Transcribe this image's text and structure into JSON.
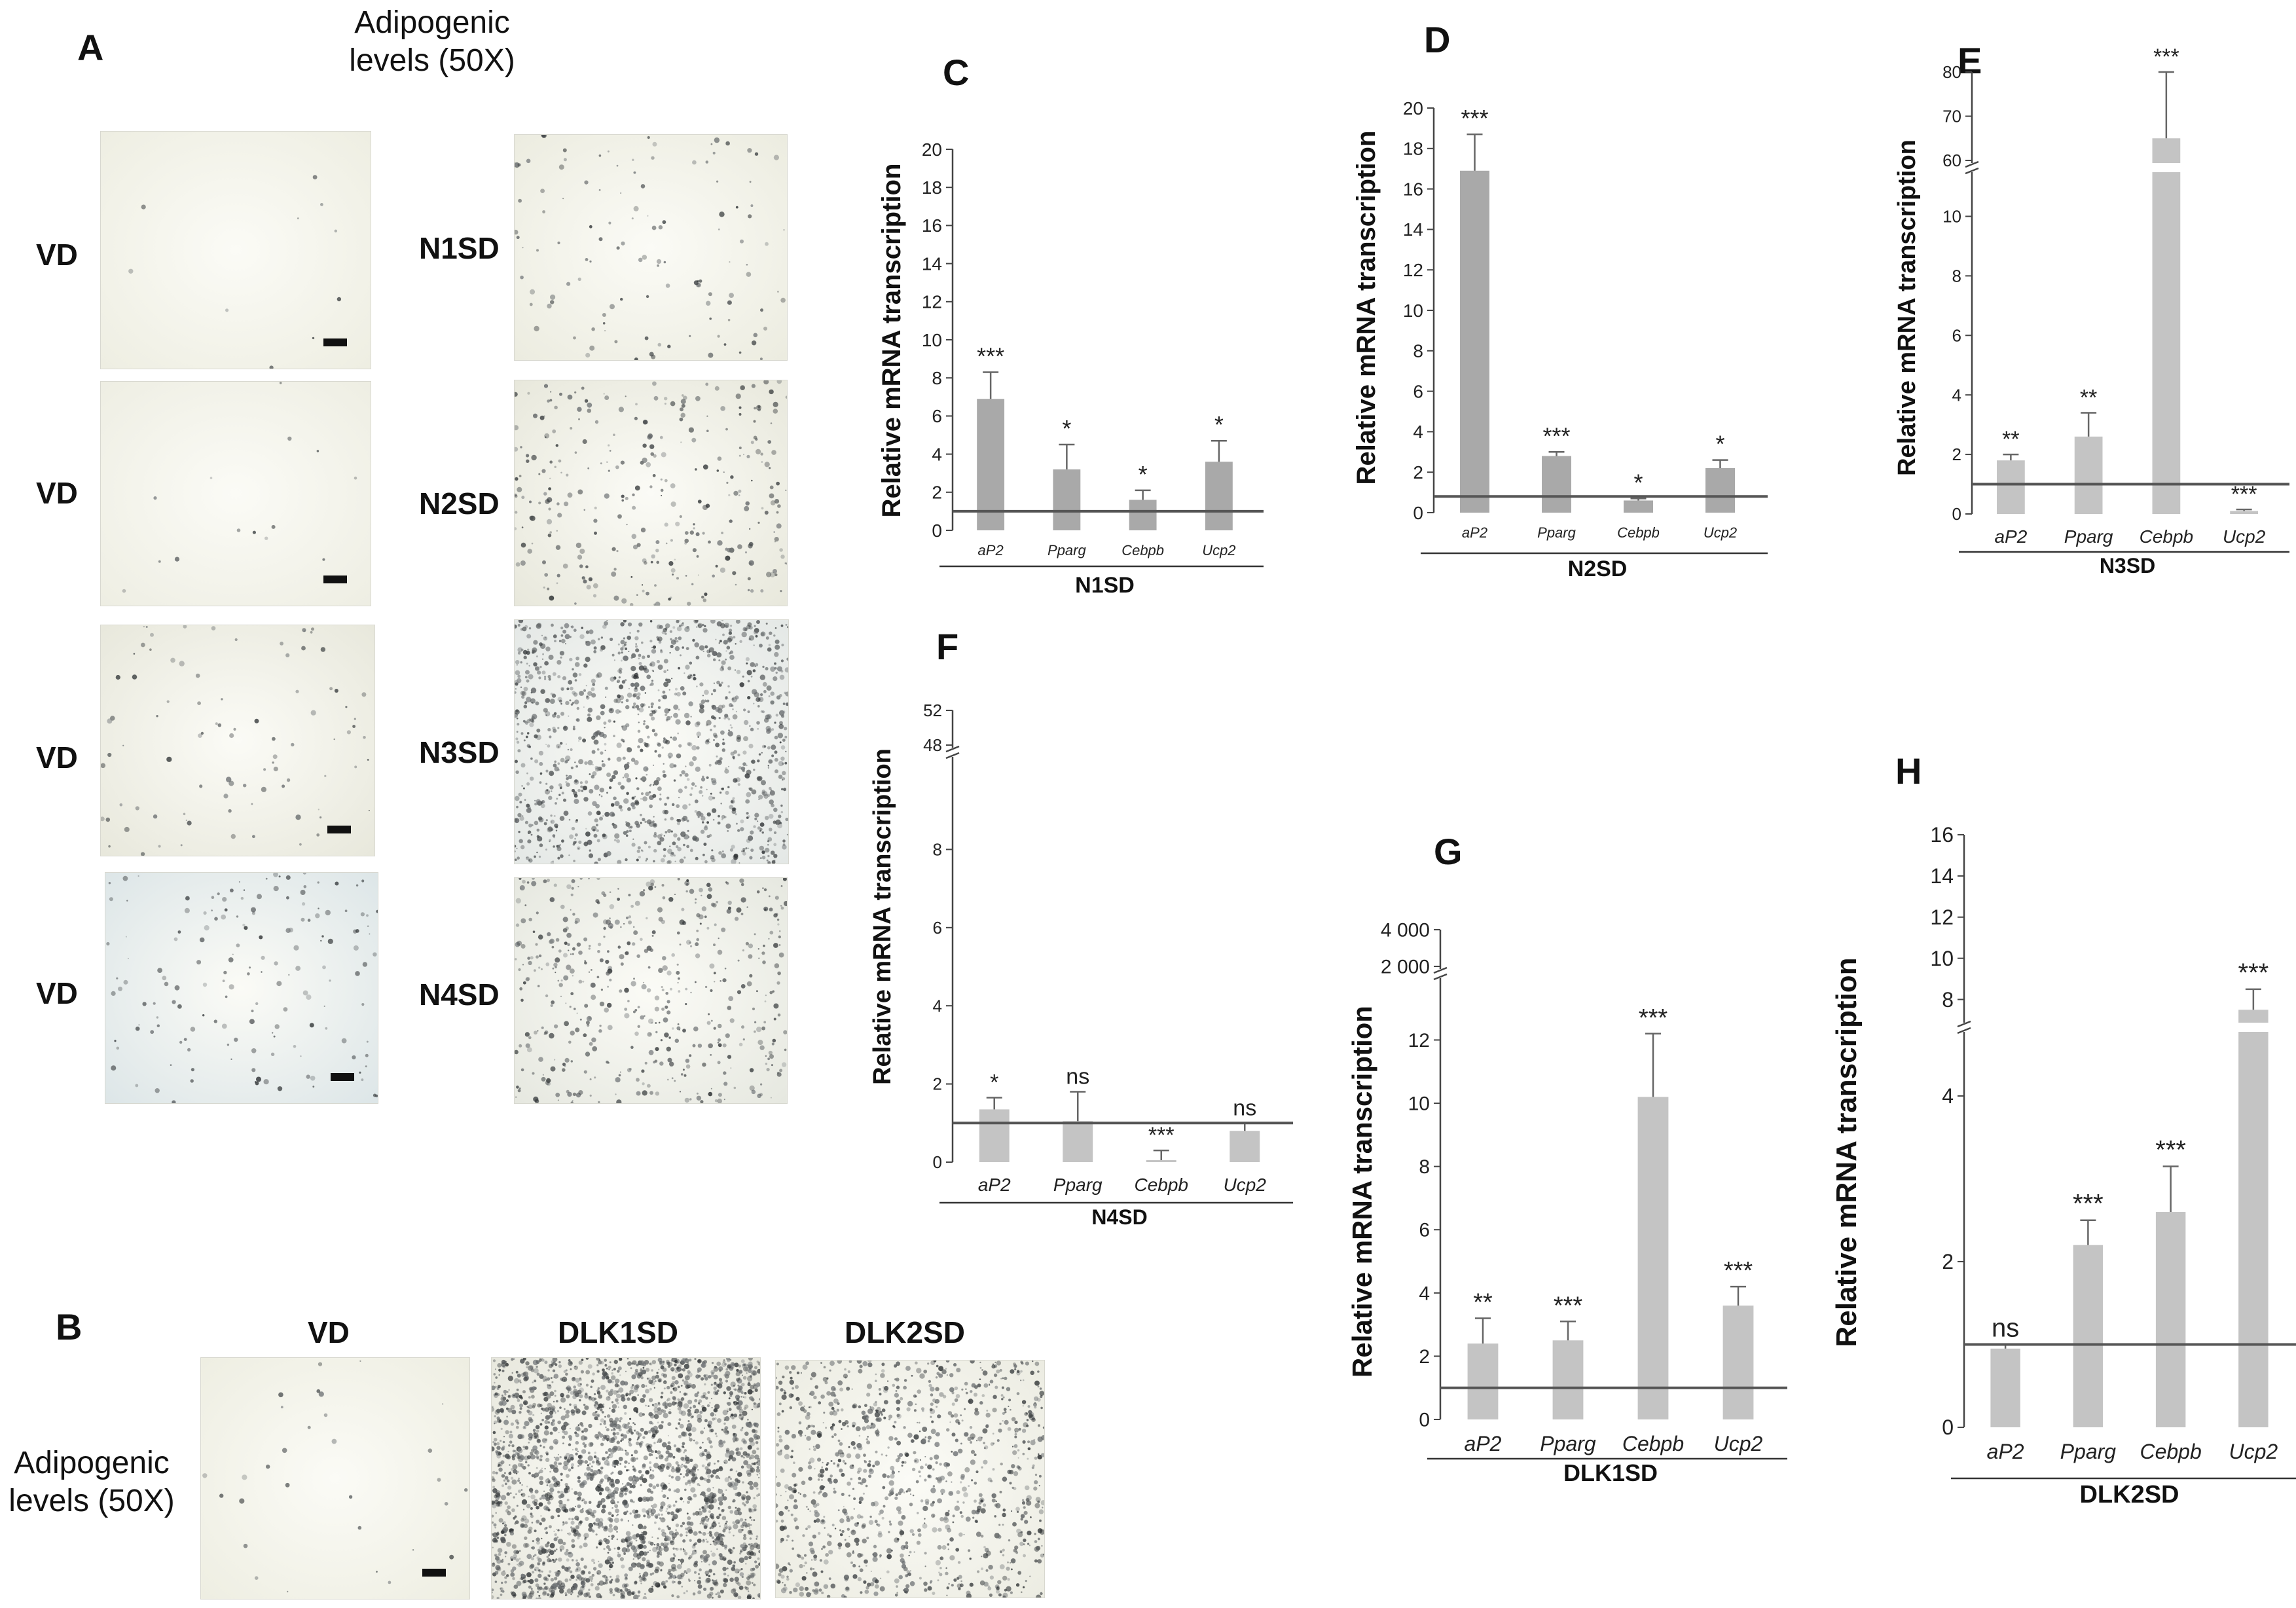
{
  "panel_a": {
    "letter": "A",
    "header": [
      "Adipogenic",
      "levels (50X)"
    ],
    "rows": [
      {
        "control": "VD",
        "treated": "N1SD"
      },
      {
        "control": "VD",
        "treated": "N2SD"
      },
      {
        "control": "VD",
        "treated": "N3SD"
      },
      {
        "control": "VD",
        "treated": "N4SD"
      }
    ]
  },
  "panel_b": {
    "letter": "B",
    "row_label": [
      "Adipogenic",
      "levels (50X)"
    ],
    "columns": [
      "VD",
      "DLK1SD",
      "DLK2SD"
    ]
  },
  "colors": {
    "bar": "#c4c4c4",
    "bar_dark": "#a9a9a9",
    "axis": "#444444",
    "reference_line": "#555555"
  },
  "chart_data": [
    {
      "id": "C",
      "letter": "C",
      "type": "bar",
      "group": "N1SD",
      "ylabel": "Relative mRNA transcription",
      "categories": [
        "aP2",
        "Pparg",
        "Cebpb",
        "Ucp2"
      ],
      "values": [
        6.9,
        3.2,
        1.6,
        3.6
      ],
      "errors": [
        1.4,
        1.3,
        0.5,
        1.1
      ],
      "significance": [
        "***",
        "*",
        "*",
        "*"
      ],
      "ylim": [
        0,
        20
      ],
      "ticks": [
        0,
        2,
        4,
        6,
        8,
        10,
        12,
        14,
        16,
        18,
        20
      ],
      "reference": 1
    },
    {
      "id": "D",
      "letter": "D",
      "type": "bar",
      "group": "N2SD",
      "ylabel": "Relative mRNA transcription",
      "categories": [
        "aP2",
        "Pparg",
        "Cebpb",
        "Ucp2"
      ],
      "values": [
        16.9,
        2.8,
        0.6,
        2.2
      ],
      "errors": [
        1.8,
        0.2,
        0.1,
        0.4
      ],
      "significance": [
        "***",
        "***",
        "*",
        "*"
      ],
      "ylim": [
        0,
        20
      ],
      "ticks": [
        0,
        2,
        4,
        6,
        8,
        10,
        12,
        14,
        16,
        18,
        20
      ],
      "reference": 0.8
    },
    {
      "id": "E",
      "letter": "E",
      "type": "bar",
      "group": "N3SD",
      "ylabel": "Relative mRNA transcription",
      "categories": [
        "aP2",
        "Pparg",
        "Cebpb",
        "Ucp2"
      ],
      "values": [
        1.8,
        2.6,
        65,
        0.1
      ],
      "errors": [
        0.2,
        0.8,
        15,
        0.05
      ],
      "significance": [
        "**",
        "**",
        "***",
        "***"
      ],
      "ticks": [
        0,
        2,
        4,
        6,
        8,
        10,
        60,
        70,
        80
      ],
      "reference": 1,
      "broken_axis": {
        "lower": [
          0,
          11
        ],
        "upper": [
          60,
          80
        ]
      }
    },
    {
      "id": "F",
      "letter": "F",
      "type": "bar",
      "group": "N4SD",
      "ylabel": "Relative mRNA transcription",
      "categories": [
        "aP2",
        "Pparg",
        "Cebpb",
        "Ucp2"
      ],
      "values": [
        1.35,
        1.05,
        0.05,
        0.8
      ],
      "errors": [
        0.3,
        0.75,
        0.25,
        0.2
      ],
      "significance": [
        "*",
        "ns",
        "***",
        "ns"
      ],
      "ticks": [
        0,
        2,
        4,
        6,
        8,
        48,
        52
      ],
      "reference": 1,
      "broken_axis": {
        "lower": [
          0,
          10
        ],
        "upper": [
          48,
          52
        ]
      }
    },
    {
      "id": "G",
      "letter": "G",
      "type": "bar",
      "group": "DLK1SD",
      "ylabel": "Relative mRNA transcription",
      "categories": [
        "aP2",
        "Pparg",
        "Cebpb",
        "Ucp2"
      ],
      "values": [
        2.4,
        2.5,
        10.2,
        3.6
      ],
      "errors": [
        0.8,
        0.6,
        2.0,
        0.6
      ],
      "significance": [
        "**",
        "***",
        "***",
        "***"
      ],
      "ticks": [
        0,
        2,
        4,
        6,
        8,
        10,
        12,
        2000,
        4000
      ],
      "tick_labels": [
        "0",
        "2",
        "4",
        "6",
        "8",
        "10",
        "12",
        "2 000",
        "4 000"
      ],
      "reference": 1,
      "broken_axis": {
        "lower": [
          0,
          13.5
        ],
        "upper": [
          2000,
          4000
        ]
      }
    },
    {
      "id": "H",
      "letter": "H",
      "type": "bar",
      "group": "DLK2SD",
      "ylabel": "Relative mRNA transcription",
      "categories": [
        "aP2",
        "Pparg",
        "Cebpb",
        "Ucp2"
      ],
      "values": [
        0.95,
        2.2,
        2.6,
        7.5
      ],
      "errors": [
        0.05,
        0.3,
        0.55,
        1.0
      ],
      "significance": [
        "ns",
        "***",
        "***",
        "***"
      ],
      "ticks": [
        0,
        2,
        4,
        8,
        10,
        12,
        14,
        16
      ],
      "reference": 1,
      "broken_axis": {
        "lower": [
          0,
          4.6
        ],
        "upper": [
          7,
          16
        ]
      }
    }
  ]
}
